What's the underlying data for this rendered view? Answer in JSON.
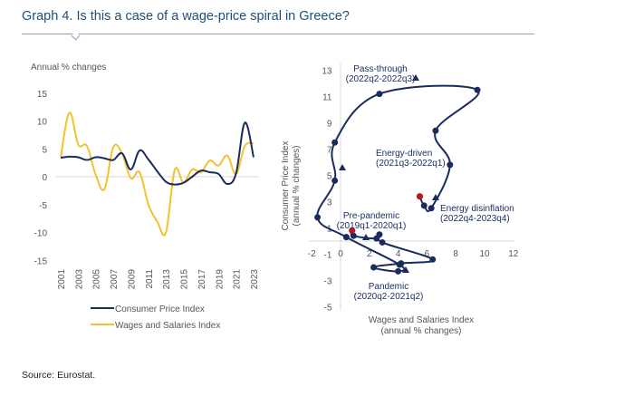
{
  "title": "Graph 4. Is this a case of a wage-price spiral in Greece?",
  "source": "Source: Eurostat.",
  "colors": {
    "cpi": "#1a2b5e",
    "wages": "#f2c230",
    "start_marker": "#c0141c",
    "title": "#1f4e79"
  },
  "chart_data": [
    {
      "type": "line",
      "ylabel": "Annual % changes",
      "ylim": [
        -15,
        15
      ],
      "yticks": [
        15,
        10,
        5,
        0,
        -5,
        -10,
        -15
      ],
      "x": [
        2001,
        2002,
        2003,
        2004,
        2005,
        2006,
        2007,
        2008,
        2009,
        2010,
        2011,
        2012,
        2013,
        2014,
        2015,
        2016,
        2017,
        2018,
        2019,
        2020,
        2021,
        2022,
        2023
      ],
      "xticks": [
        "2001",
        "2003",
        "2005",
        "2007",
        "2009",
        "2011",
        "2013",
        "2015",
        "2017",
        "2019",
        "2021",
        "2023"
      ],
      "legend_position": "bottom",
      "series": [
        {
          "name": "Consumer Price Index",
          "color": "#1a2b5e",
          "values": [
            3.4,
            3.6,
            3.5,
            3.0,
            3.5,
            3.3,
            3.0,
            4.2,
            1.3,
            4.7,
            3.1,
            1.0,
            -0.9,
            -1.4,
            -1.1,
            0.0,
            1.1,
            0.8,
            0.5,
            -1.3,
            0.6,
            9.7,
            3.5
          ]
        },
        {
          "name": "Wages and Salaries Index",
          "color": "#f2c230",
          "values": [
            3.5,
            11.5,
            5.8,
            5.5,
            0.3,
            -2.2,
            5.3,
            4.2,
            -0.3,
            0.8,
            -5.0,
            -8.0,
            -10.0,
            1.2,
            -1.0,
            1.3,
            0.8,
            2.9,
            2.0,
            3.8,
            0.5,
            5.5,
            6.0
          ]
        }
      ]
    },
    {
      "type": "scatter",
      "connected": true,
      "xlabel": "Wages and Salaries Index",
      "xlabel2": "(annual % changes)",
      "ylabel": "Consumer Price Index",
      "ylabel2": "(annual % changes)",
      "xlim": [
        -2,
        12
      ],
      "ylim": [
        -5,
        13
      ],
      "xticks": [
        -2,
        0,
        2,
        4,
        6,
        8,
        10,
        12
      ],
      "yticks": [
        13,
        11,
        9,
        7,
        5,
        3,
        1,
        -1,
        -3,
        -5
      ],
      "points": [
        {
          "x": 0.8,
          "y": 0.8
        },
        {
          "x": 0.9,
          "y": 0.4
        },
        {
          "x": 2.5,
          "y": 0.2
        },
        {
          "x": 2.7,
          "y": 0.5
        },
        {
          "x": 2.9,
          "y": -0.1
        },
        {
          "x": 6.4,
          "y": -1.4
        },
        {
          "x": 4.2,
          "y": -1.7
        },
        {
          "x": 2.3,
          "y": -2.0
        },
        {
          "x": 4.0,
          "y": -2.3
        },
        {
          "x": 4.1,
          "y": -1.8
        },
        {
          "x": 0.4,
          "y": 0.3
        },
        {
          "x": -1.6,
          "y": 1.8
        },
        {
          "x": -0.4,
          "y": 4.6
        },
        {
          "x": -0.4,
          "y": 7.5
        },
        {
          "x": 2.7,
          "y": 11.2
        },
        {
          "x": 9.5,
          "y": 11.5
        },
        {
          "x": 6.6,
          "y": 8.4
        },
        {
          "x": 7.6,
          "y": 5.8
        },
        {
          "x": 6.3,
          "y": 2.5
        },
        {
          "x": 5.8,
          "y": 2.7
        },
        {
          "x": 5.5,
          "y": 3.4
        }
      ],
      "start_points": [
        {
          "x": 0.8,
          "y": 0.8
        },
        {
          "x": 5.5,
          "y": 3.4
        }
      ],
      "annotations": [
        {
          "line1": "Pass-through",
          "line2": "(2022q2-2022q3)"
        },
        {
          "line1": "Energy-driven",
          "line2": "(2021q3-2022q1)"
        },
        {
          "line1": "Pre-pandemic",
          "line2": "(2019q1-2020q1)"
        },
        {
          "line1": "Energy disinflation",
          "line2": "(2022q4-2023q4)"
        },
        {
          "line1": "Pandemic",
          "line2": "(2020q2-2021q2)"
        }
      ]
    }
  ]
}
